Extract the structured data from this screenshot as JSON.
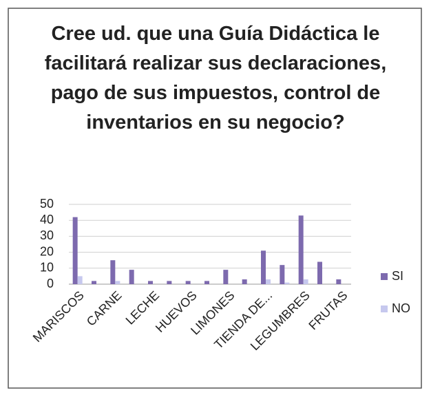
{
  "chart_data": {
    "type": "bar",
    "title": "Cree ud. que una Guía Didáctica le facilitará realizar sus declaraciones, pago de sus impuestos, control de inventarios en su negocio?",
    "categories": [
      "MARISCOS",
      null,
      "CARNE",
      null,
      "LECHE",
      null,
      "HUEVOS",
      null,
      "LIMONES",
      null,
      "TIENDA DE...",
      null,
      "LEGUMBRES",
      null,
      "FRUTAS"
    ],
    "series": [
      {
        "name": "SI",
        "color": "#7d6aae",
        "values": [
          42,
          2,
          15,
          9,
          2,
          2,
          2,
          2,
          9,
          3,
          21,
          12,
          43,
          14,
          3
        ]
      },
      {
        "name": "NO",
        "color": "#c6c8ee",
        "values": [
          5,
          0,
          2,
          0,
          0,
          0,
          0,
          0,
          0,
          0,
          3,
          1,
          3,
          0,
          0
        ]
      }
    ],
    "ylim": [
      0,
      50
    ],
    "yticks": [
      0,
      10,
      20,
      30,
      40,
      50
    ],
    "grid": true,
    "legend": "right"
  }
}
